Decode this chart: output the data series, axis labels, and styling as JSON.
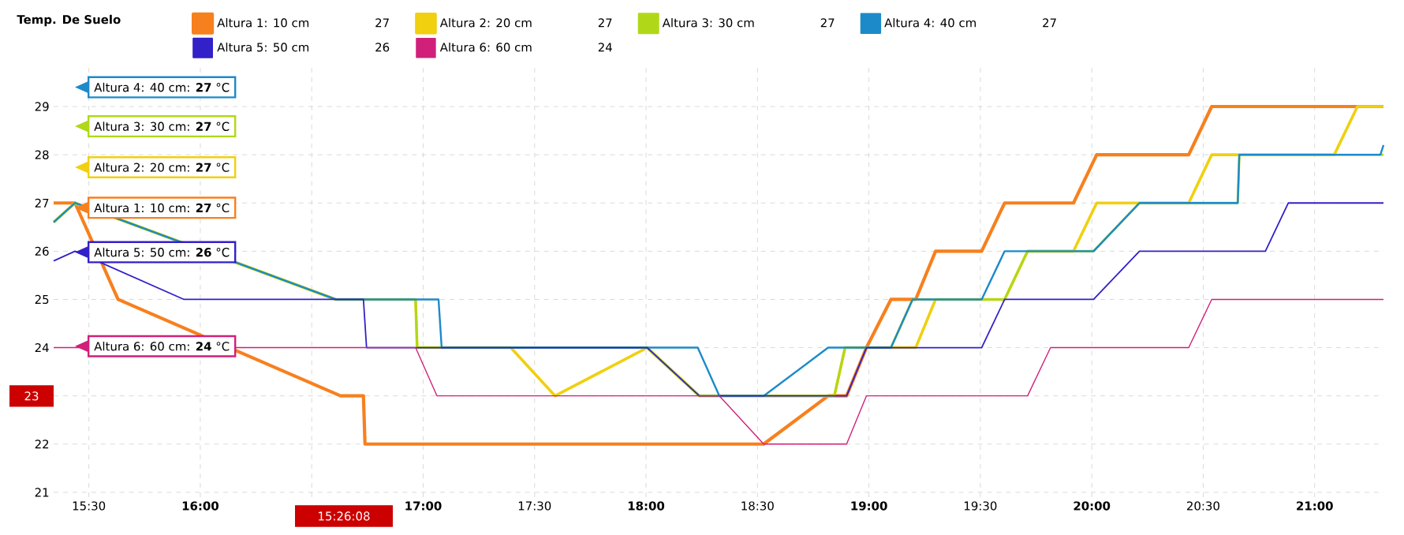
{
  "chart_data": {
    "type": "line",
    "legend_title": "Temp. De Suelo",
    "legend": "top",
    "grid": true,
    "line_style": "solid",
    "xlim": [
      15.342,
      21.309
    ],
    "ylim": [
      20.9,
      29.9
    ],
    "xticks": [
      {
        "value": 15.5,
        "label": "15:30"
      },
      {
        "value": 16,
        "label": "16:00"
      },
      {
        "value": 16.5,
        "label": null
      },
      {
        "value": 17,
        "label": "17:00"
      },
      {
        "value": 17.5,
        "label": "17:30"
      },
      {
        "value": 18,
        "label": "18:00"
      },
      {
        "value": 18.5,
        "label": "18:30"
      },
      {
        "value": 19,
        "label": "19:00"
      },
      {
        "value": 19.5,
        "label": "19:30"
      },
      {
        "value": 20,
        "label": "20:00"
      },
      {
        "value": 20.5,
        "label": "20:30"
      },
      {
        "value": 21,
        "label": "21:00"
      }
    ],
    "yticks": [
      21,
      22,
      {
        "value": 23,
        "label": null
      },
      24,
      25,
      26,
      27,
      28,
      29
    ],
    "series": [
      {
        "name": "Altura 1: 10 cm",
        "color": "#f7801e",
        "x": [
          15.342,
          15.438,
          15.631,
          16.629,
          16.732,
          16.739,
          18.528,
          18.817,
          18.9,
          18.989,
          19.099,
          19.21,
          19.299,
          19.506,
          19.609,
          19.918,
          20.022,
          20.435,
          20.538,
          21.309
        ],
        "values": [
          27,
          27,
          25,
          23,
          23,
          22,
          22,
          23,
          23,
          24,
          25,
          25,
          26,
          26,
          27,
          27,
          28,
          28,
          29,
          29
        ]
      },
      {
        "name": "Altura 2: 20 cm",
        "color": "#f0d00f",
        "x": [
          15.342,
          15.438,
          16.608,
          16.966,
          16.973,
          17.393,
          17.592,
          18.005,
          18.239,
          18.845,
          18.893,
          19.21,
          19.299,
          19.609,
          19.712,
          19.918,
          20.022,
          20.435,
          20.538,
          21.088,
          21.192,
          21.309
        ],
        "values": [
          26.6,
          27,
          25,
          25,
          24,
          24,
          23,
          24,
          23,
          23,
          24,
          24,
          25,
          25,
          26,
          26,
          27,
          27,
          28,
          28,
          29,
          29
        ]
      },
      {
        "name": "Altura 3: 30 cm",
        "color": "#b0d818",
        "x": [
          15.342,
          15.438,
          16.608,
          16.966,
          16.973,
          18.005,
          18.239,
          18.845,
          18.893,
          19.099,
          19.196,
          19.609,
          19.712,
          20.008,
          20.214,
          20.655,
          20.662,
          21.309
        ],
        "values": [
          26.6,
          27,
          25,
          25,
          24,
          24,
          23,
          23,
          24,
          24,
          25,
          25,
          26,
          26,
          27,
          27,
          28,
          28
        ]
      },
      {
        "name": "Altura 4: 40 cm",
        "color": "#1c8ac9",
        "x": [
          15.342,
          15.438,
          16.608,
          17.069,
          17.083,
          18.232,
          18.329,
          18.528,
          18.817,
          19.099,
          19.196,
          19.506,
          19.609,
          20.008,
          20.214,
          20.655,
          20.662,
          21.295,
          21.309
        ],
        "values": [
          26.6,
          27,
          25,
          25,
          24,
          24,
          23,
          23,
          24,
          24,
          25,
          25,
          26,
          26,
          27,
          27,
          28,
          28,
          28.2
        ]
      },
      {
        "name": "Altura 5: 50 cm",
        "color": "#3220c8",
        "x": [
          15.342,
          15.438,
          15.927,
          16.732,
          16.746,
          18.005,
          18.239,
          18.9,
          18.989,
          19.506,
          19.609,
          20.008,
          20.214,
          20.779,
          20.882,
          21.309
        ],
        "values": [
          25.8,
          26,
          25,
          25,
          24,
          24,
          23,
          23,
          24,
          24,
          25,
          25,
          26,
          26,
          27,
          27
        ]
      },
      {
        "name": "Altura 6: 60 cm",
        "color": "#d0207a",
        "x": [
          15.342,
          16.966,
          17.062,
          18.329,
          18.528,
          18.9,
          18.989,
          19.712,
          19.815,
          20.435,
          20.538,
          21.309
        ],
        "values": [
          24,
          24,
          23,
          23,
          22,
          22,
          23,
          23,
          24,
          24,
          25,
          25
        ]
      }
    ],
    "annotations": [
      "Altura 4: 40 cm: **27** °C",
      "Altura 3: 30 cm: **27** °C",
      "Altura 2: 20 cm: **27** °C",
      "Altura 1: 10 cm: **27** °C",
      "Altura 5: 50 cm: **26** °C",
      "Altura 6: 60 cm: **24** °C",
      "27",
      "27",
      "27",
      "27",
      "26",
      "24",
      "23",
      "15:26:08"
    ]
  }
}
